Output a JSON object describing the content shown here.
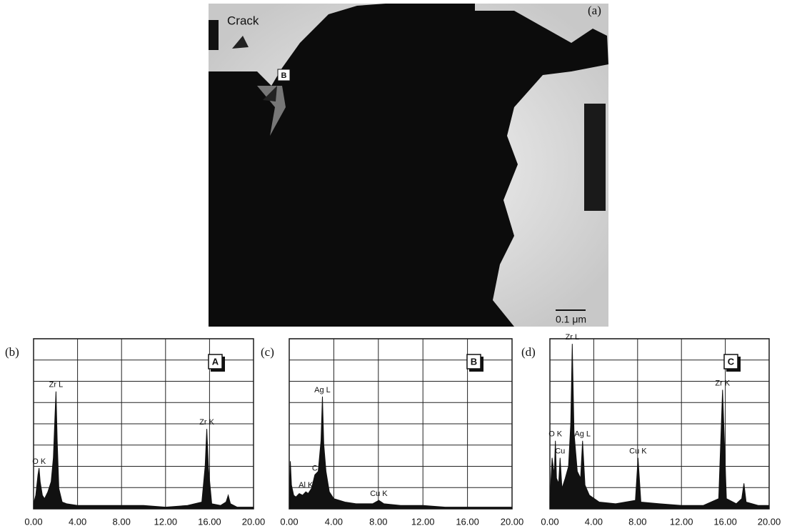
{
  "image": {
    "panel_label": "(a)",
    "crack_label": "Crack",
    "point_label": "B",
    "scale_bar": "0.1 μm"
  },
  "chart_data": [
    {
      "type": "spectrum",
      "panel_label": "(b)",
      "inset_label": "A",
      "color": "#111111",
      "grid": true,
      "x": [
        0,
        0.2,
        0.4,
        0.5,
        0.6,
        0.8,
        1.0,
        1.3,
        1.6,
        1.8,
        1.95,
        2.04,
        2.15,
        2.3,
        2.6,
        3.0,
        4.0,
        6.0,
        8.0,
        10.0,
        12.0,
        14.0,
        15.3,
        15.6,
        15.75,
        15.9,
        16.2,
        17.0,
        17.5,
        17.7,
        17.9,
        18.5,
        20.0
      ],
      "values": [
        3,
        8,
        20,
        24,
        16,
        8,
        6,
        10,
        16,
        30,
        55,
        69,
        40,
        12,
        4,
        3,
        2,
        2,
        2,
        2,
        1,
        2,
        4,
        25,
        47,
        24,
        3,
        2,
        4,
        8,
        3,
        1,
        1
      ],
      "peak_labels": [
        null,
        null,
        null,
        "O K",
        null,
        null,
        null,
        null,
        null,
        null,
        null,
        "Zr L",
        null,
        null,
        null,
        null,
        null,
        null,
        null,
        null,
        null,
        null,
        null,
        null,
        "Zr K",
        null,
        null,
        null,
        null,
        null,
        null,
        null,
        null
      ],
      "xlim": [
        0,
        20
      ],
      "ylim": [
        0,
        100
      ],
      "xticks": [
        {
          "value": 0,
          "label": "0.00"
        },
        {
          "value": 4,
          "label": "4.00"
        },
        {
          "value": 8,
          "label": "8.00"
        },
        {
          "value": 12,
          "label": "12.00"
        },
        {
          "value": 16,
          "label": "16.00"
        },
        {
          "value": 20,
          "label": "20.00"
        }
      ]
    },
    {
      "type": "spectrum",
      "panel_label": "(c)",
      "inset_label": "B",
      "color": "#111111",
      "grid": true,
      "x": [
        0,
        0.1,
        0.2,
        0.4,
        0.6,
        0.9,
        1.2,
        1.49,
        1.7,
        2.0,
        2.3,
        2.6,
        2.85,
        2.98,
        3.1,
        3.3,
        3.6,
        4.0,
        5.0,
        6.0,
        7.5,
        8.04,
        8.5,
        10.0,
        12.0,
        14.0,
        16.0,
        18.0,
        20.0
      ],
      "values": [
        2,
        28,
        14,
        8,
        7,
        9,
        8,
        10,
        9,
        12,
        20,
        22,
        40,
        66,
        38,
        22,
        10,
        6,
        4,
        3,
        3,
        5,
        3,
        2,
        2,
        1,
        1,
        1,
        1
      ],
      "peak_labels": [
        null,
        null,
        null,
        null,
        null,
        null,
        null,
        "Al K",
        null,
        null,
        "C",
        null,
        null,
        "Ag L",
        null,
        null,
        null,
        null,
        null,
        null,
        null,
        "Cu K",
        null,
        null,
        null,
        null,
        null,
        null,
        null
      ],
      "xlim": [
        0,
        20
      ],
      "ylim": [
        0,
        100
      ],
      "xticks": [
        {
          "value": 0,
          "label": "0.00"
        },
        {
          "value": 4,
          "label": "4.00"
        },
        {
          "value": 8,
          "label": "8.00"
        },
        {
          "value": 12,
          "label": "12.00"
        },
        {
          "value": 16,
          "label": "16.00"
        },
        {
          "value": 20,
          "label": "20.00"
        }
      ]
    },
    {
      "type": "spectrum",
      "panel_label": "(d)",
      "inset_label": "C",
      "color": "#111111",
      "grid": true,
      "x": [
        0,
        0.2,
        0.4,
        0.5,
        0.6,
        0.8,
        0.93,
        1.1,
        1.4,
        1.7,
        1.9,
        2.04,
        2.2,
        2.5,
        2.8,
        2.98,
        3.2,
        3.6,
        4.5,
        6.0,
        7.8,
        8.04,
        8.3,
        10.0,
        12.0,
        14.0,
        15.4,
        15.75,
        16.1,
        17.0,
        17.5,
        17.7,
        17.9,
        19.0,
        20.0
      ],
      "values": [
        5,
        30,
        20,
        40,
        18,
        15,
        30,
        12,
        18,
        25,
        50,
        97,
        45,
        22,
        18,
        40,
        14,
        8,
        4,
        3,
        5,
        30,
        4,
        3,
        2,
        2,
        6,
        70,
        6,
        3,
        6,
        15,
        4,
        2,
        2
      ],
      "peak_labels": [
        null,
        null,
        null,
        "O K",
        null,
        null,
        "Cu",
        null,
        null,
        null,
        null,
        "Zr L",
        null,
        null,
        null,
        "Ag L",
        null,
        null,
        null,
        null,
        null,
        "Cu K",
        null,
        null,
        null,
        null,
        null,
        "Zr K",
        null,
        null,
        null,
        null,
        null,
        null,
        null
      ],
      "xlim": [
        0,
        20
      ],
      "ylim": [
        0,
        100
      ],
      "xticks": [
        {
          "value": 0,
          "label": "0.00"
        },
        {
          "value": 4,
          "label": "4.00"
        },
        {
          "value": 8,
          "label": "8.00"
        },
        {
          "value": 12,
          "label": "12.00"
        },
        {
          "value": 16,
          "label": "16.00"
        },
        {
          "value": 20,
          "label": "20.00"
        }
      ]
    }
  ]
}
